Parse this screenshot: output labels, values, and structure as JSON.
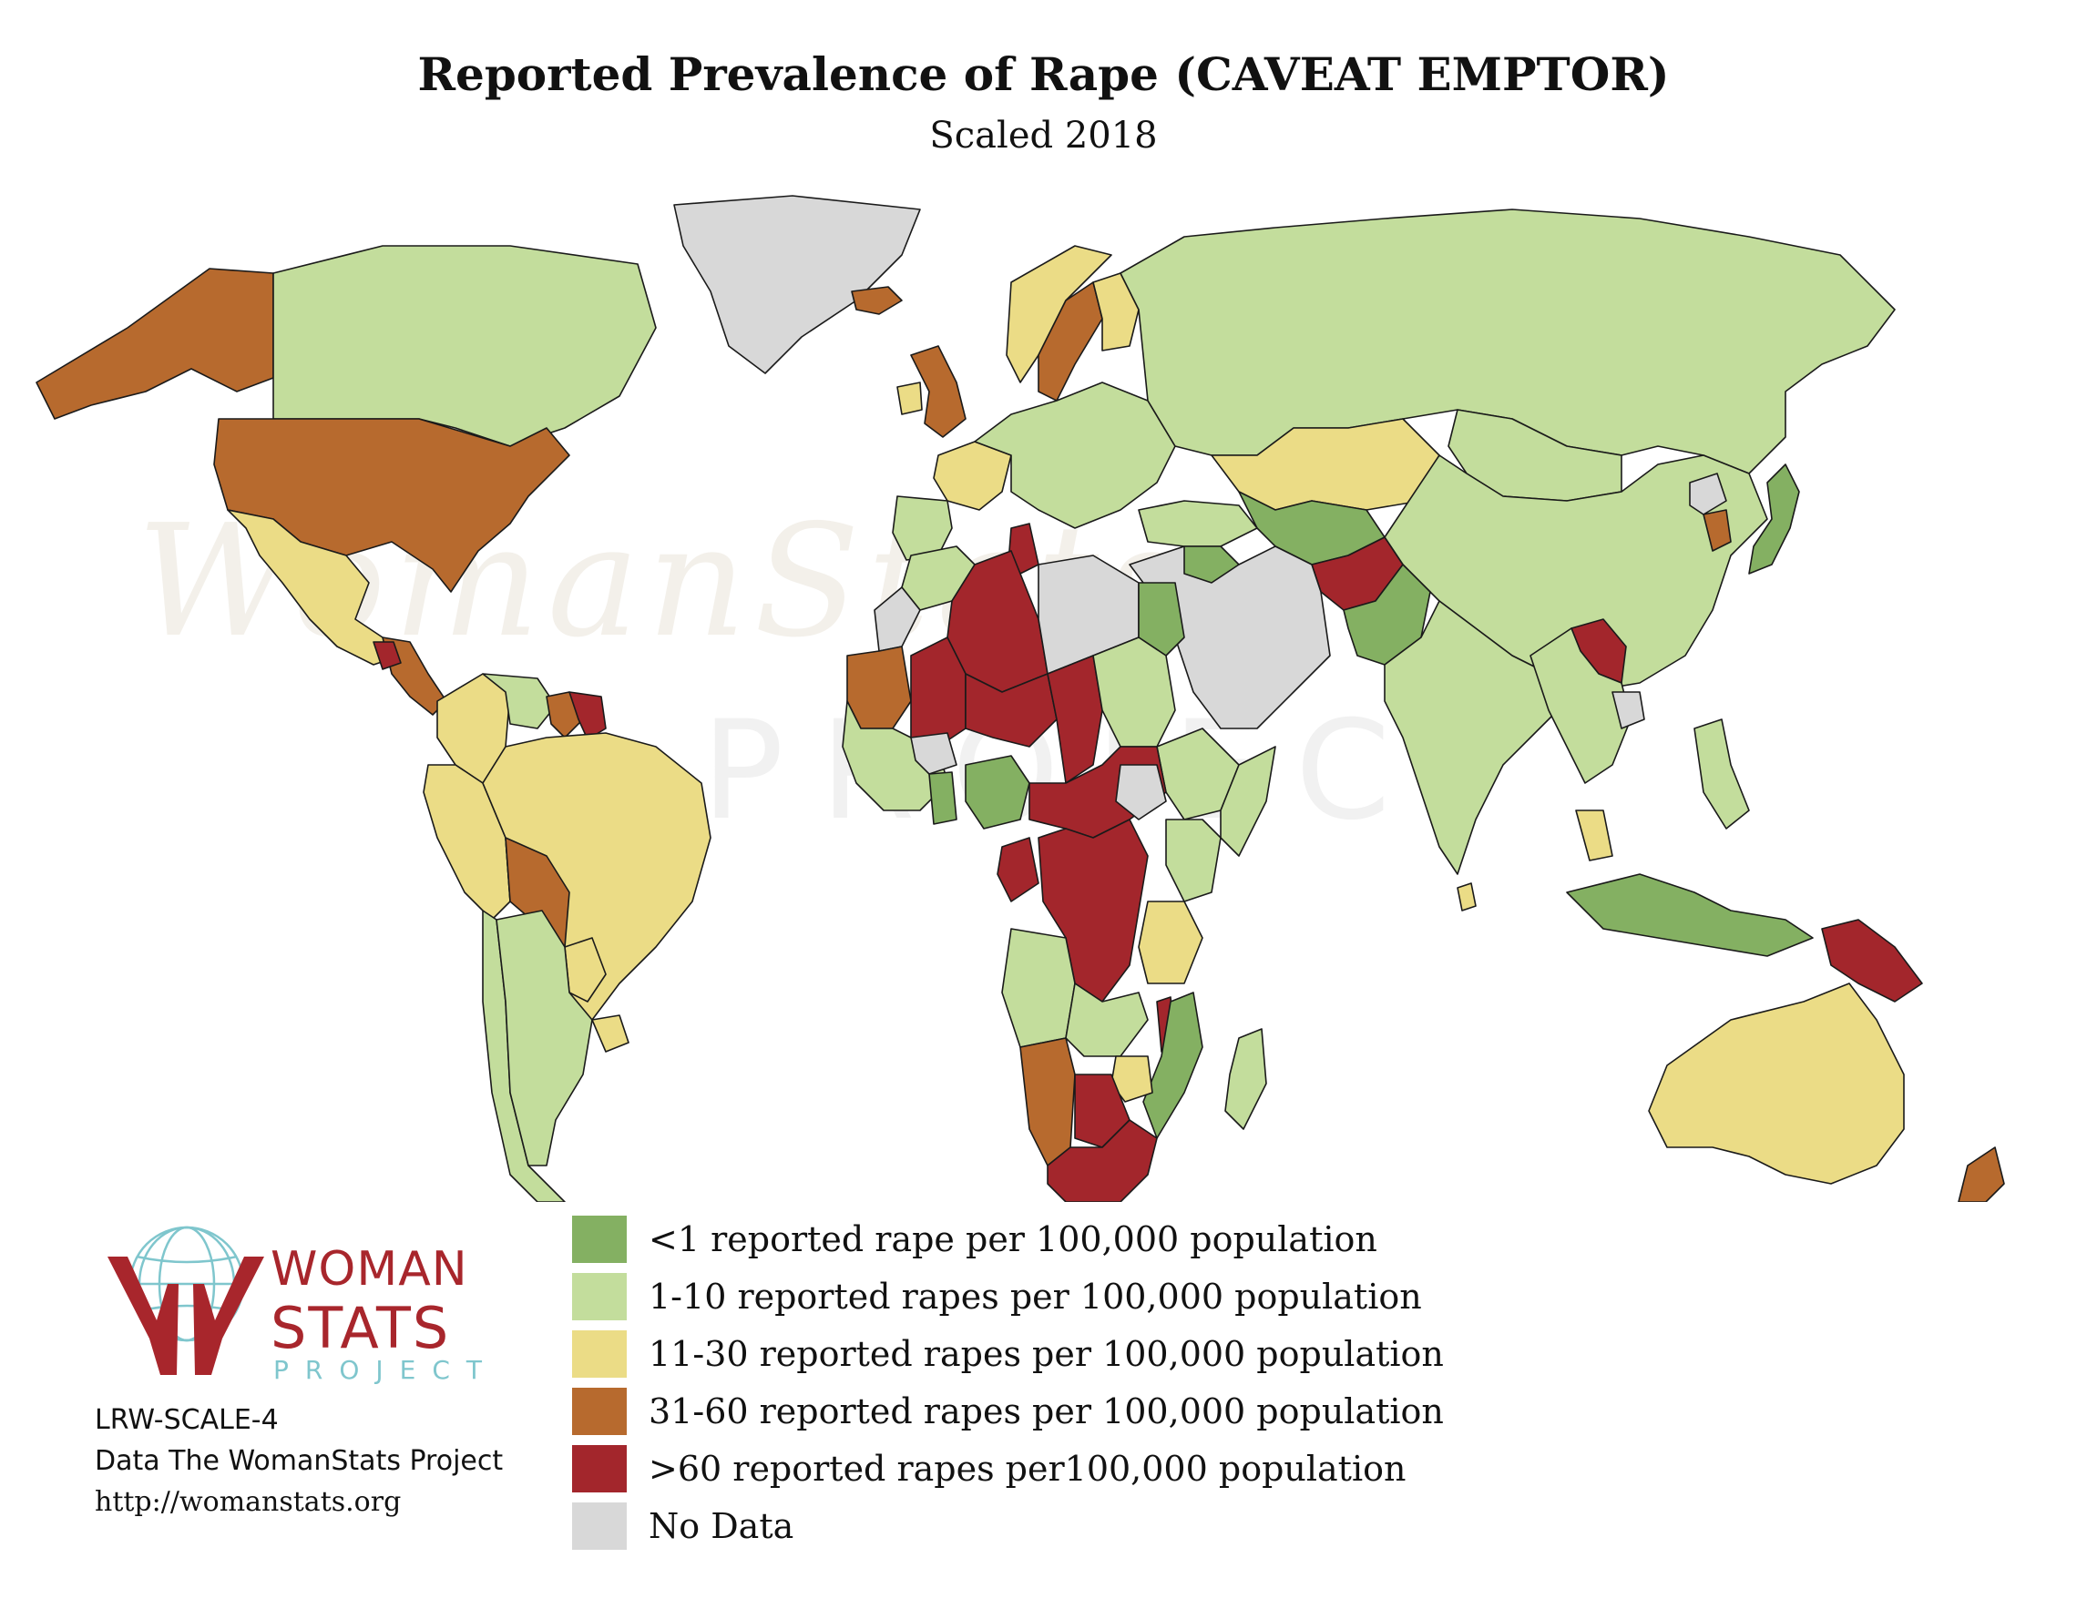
{
  "header": {
    "title": "Reported Prevalence of Rape (CAVEAT EMPTOR)",
    "subtitle": "Scaled 2018"
  },
  "watermark": {
    "main": "WomanStats",
    "sub": "PROJECT"
  },
  "legend": {
    "items": [
      {
        "label": "<1 reported rape per 100,000 population",
        "color": "#84b062"
      },
      {
        "label": "1-10 reported rapes per 100,000 population",
        "color": "#c3dd9c"
      },
      {
        "label": "11-30 reported rapes per 100,000 population",
        "color": "#ebdc86"
      },
      {
        "label": "31-60 reported rapes per 100,000 population",
        "color": "#b76a2e"
      },
      {
        "label": ">60 reported rapes per100,000 population",
        "color": "#a3262c"
      },
      {
        "label": "No Data",
        "color": "#d8d8d8"
      }
    ]
  },
  "logo": {
    "line1": "WOMAN",
    "line2": "STATS",
    "line3": "PROJECT",
    "brand_red": "#a8262c",
    "brand_teal": "#7fc6cd"
  },
  "credits": {
    "code": "LRW-SCALE-4",
    "source": "Data The WomanStats Project",
    "url": "http://womanstats.org"
  },
  "map_regions": [
    {
      "name": "Alaska",
      "category": "31-60"
    },
    {
      "name": "Canada",
      "category": "1-10"
    },
    {
      "name": "Greenland",
      "category": "no-data"
    },
    {
      "name": "United States",
      "category": "31-60"
    },
    {
      "name": "Mexico",
      "category": "11-30"
    },
    {
      "name": "Central America",
      "category": "31-60"
    },
    {
      "name": "Guatemala",
      "category": ">60"
    },
    {
      "name": "Colombia",
      "category": "11-30"
    },
    {
      "name": "Venezuela",
      "category": "1-10"
    },
    {
      "name": "Guyana",
      "category": "31-60"
    },
    {
      "name": "Suriname",
      "category": ">60"
    },
    {
      "name": "Peru",
      "category": "11-30"
    },
    {
      "name": "Brazil",
      "category": "11-30"
    },
    {
      "name": "Bolivia",
      "category": "31-60"
    },
    {
      "name": "Paraguay",
      "category": "11-30"
    },
    {
      "name": "Chile",
      "category": "1-10"
    },
    {
      "name": "Argentina",
      "category": "1-10"
    },
    {
      "name": "Uruguay",
      "category": "11-30"
    },
    {
      "name": "Iceland",
      "category": "31-60"
    },
    {
      "name": "United Kingdom",
      "category": "31-60"
    },
    {
      "name": "Ireland",
      "category": "11-30"
    },
    {
      "name": "France",
      "category": "11-30"
    },
    {
      "name": "Spain",
      "category": "1-10"
    },
    {
      "name": "Norway",
      "category": "11-30"
    },
    {
      "name": "Sweden",
      "category": "31-60"
    },
    {
      "name": "Finland",
      "category": "11-30"
    },
    {
      "name": "Central Europe",
      "category": "1-10"
    },
    {
      "name": "Russia",
      "category": "1-10"
    },
    {
      "name": "Kazakhstan",
      "category": "11-30"
    },
    {
      "name": "Mongolia",
      "category": "1-10"
    },
    {
      "name": "China",
      "category": "1-10"
    },
    {
      "name": "Central Asia",
      "category": "<1"
    },
    {
      "name": "Afghanistan",
      "category": ">60"
    },
    {
      "name": "Pakistan",
      "category": "<1"
    },
    {
      "name": "India",
      "category": "1-10"
    },
    {
      "name": "Sri Lanka",
      "category": "11-30"
    },
    {
      "name": "Middle East",
      "category": "no-data"
    },
    {
      "name": "Turkey",
      "category": "1-10"
    },
    {
      "name": "Syria",
      "category": "<1"
    },
    {
      "name": "North Korea",
      "category": "no-data"
    },
    {
      "name": "South Korea",
      "category": "31-60"
    },
    {
      "name": "Japan",
      "category": "<1"
    },
    {
      "name": "Laos",
      "category": ">60"
    },
    {
      "name": "Mainland Southeast Asia",
      "category": "1-10"
    },
    {
      "name": "Cambodia",
      "category": "no-data"
    },
    {
      "name": "Malaysia",
      "category": "11-30"
    },
    {
      "name": "Indonesia",
      "category": "<1"
    },
    {
      "name": "Philippines",
      "category": "1-10"
    },
    {
      "name": "Papua New Guinea",
      "category": ">60"
    },
    {
      "name": "Australia",
      "category": "11-30"
    },
    {
      "name": "New Zealand",
      "category": "31-60"
    },
    {
      "name": "Morocco",
      "category": "1-10"
    },
    {
      "name": "Tunisia",
      "category": ">60"
    },
    {
      "name": "Algeria",
      "category": ">60"
    },
    {
      "name": "Libya",
      "category": "no-data"
    },
    {
      "name": "Egypt",
      "category": "<1"
    },
    {
      "name": "Western Sahara",
      "category": "no-data"
    },
    {
      "name": "Mauritania",
      "category": "31-60"
    },
    {
      "name": "Mali",
      "category": ">60"
    },
    {
      "name": "Niger",
      "category": ">60"
    },
    {
      "name": "Chad",
      "category": ">60"
    },
    {
      "name": "Sudan",
      "category": "1-10"
    },
    {
      "name": "Ethiopia",
      "category": "1-10"
    },
    {
      "name": "Somalia",
      "category": "1-10"
    },
    {
      "name": "Nigeria",
      "category": "<1"
    },
    {
      "name": "West Africa",
      "category": "1-10"
    },
    {
      "name": "Burkina Faso",
      "category": "no-data"
    },
    {
      "name": "Ghana",
      "category": "<1"
    },
    {
      "name": "Central African Republic",
      "category": ">60"
    },
    {
      "name": "South Sudan",
      "category": "no-data"
    },
    {
      "name": "Gabon",
      "category": ">60"
    },
    {
      "name": "DR Congo",
      "category": ">60"
    },
    {
      "name": "Kenya",
      "category": "1-10"
    },
    {
      "name": "Tanzania",
      "category": "11-30"
    },
    {
      "name": "Angola",
      "category": "1-10"
    },
    {
      "name": "Zambia",
      "category": "1-10"
    },
    {
      "name": "Malawi",
      "category": ">60"
    },
    {
      "name": "Mozambique",
      "category": "<1"
    },
    {
      "name": "Zimbabwe",
      "category": "11-30"
    },
    {
      "name": "Namibia",
      "category": "31-60"
    },
    {
      "name": "Botswana",
      "category": ">60"
    },
    {
      "name": "South Africa",
      "category": ">60"
    },
    {
      "name": "Madagascar",
      "category": "1-10"
    }
  ]
}
